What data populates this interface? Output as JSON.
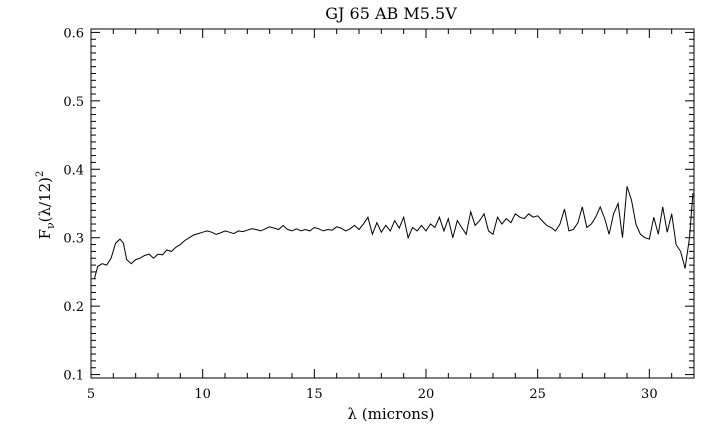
{
  "chart_data": {
    "type": "line",
    "title": "GJ 65 AB M5.5V",
    "xlabel": "λ (microns)",
    "ylabel": "Fν(λ/12)²",
    "ylabel_parts": {
      "base": "F",
      "sub": "ν",
      "mid": "(λ/12)",
      "sup": "2"
    },
    "xlim": [
      5,
      32
    ],
    "ylim": [
      0.095,
      0.605
    ],
    "xticks": [
      5,
      10,
      15,
      20,
      25,
      30
    ],
    "yticks": [
      0.1,
      0.2,
      0.3,
      0.4,
      0.5,
      0.6
    ],
    "xtick_labels": [
      "5",
      "10",
      "15",
      "20",
      "25",
      "30"
    ],
    "ytick_labels": [
      "0.1",
      "0.2",
      "0.3",
      "0.4",
      "0.5",
      "0.6"
    ],
    "grid": false,
    "series": [
      {
        "color": "#000000",
        "x": [
          5.15,
          5.3,
          5.5,
          5.7,
          5.9,
          6.1,
          6.3,
          6.45,
          6.6,
          6.8,
          7.0,
          7.2,
          7.4,
          7.6,
          7.8,
          8.0,
          8.2,
          8.4,
          8.6,
          8.8,
          9.0,
          9.2,
          9.4,
          9.6,
          9.8,
          10.0,
          10.2,
          10.4,
          10.6,
          10.8,
          11.0,
          11.2,
          11.4,
          11.6,
          11.8,
          12.0,
          12.2,
          12.4,
          12.6,
          12.8,
          13.0,
          13.2,
          13.4,
          13.6,
          13.8,
          14.0,
          14.2,
          14.4,
          14.6,
          14.8,
          15.0,
          15.2,
          15.4,
          15.6,
          15.8,
          16.0,
          16.2,
          16.4,
          16.6,
          16.8,
          17.0,
          17.2,
          17.4,
          17.6,
          17.8,
          18.0,
          18.2,
          18.4,
          18.6,
          18.8,
          19.0,
          19.2,
          19.4,
          19.6,
          19.8,
          20.0,
          20.2,
          20.4,
          20.6,
          20.8,
          21.0,
          21.2,
          21.4,
          21.6,
          21.8,
          22.0,
          22.2,
          22.4,
          22.6,
          22.8,
          23.0,
          23.2,
          23.4,
          23.6,
          23.8,
          24.0,
          24.2,
          24.4,
          24.6,
          24.8,
          25.0,
          25.2,
          25.4,
          25.6,
          25.8,
          26.0,
          26.2,
          26.4,
          26.6,
          26.8,
          27.0,
          27.2,
          27.4,
          27.6,
          27.8,
          28.0,
          28.2,
          28.4,
          28.6,
          28.8,
          29.0,
          29.2,
          29.4,
          29.6,
          29.8,
          30.0,
          30.2,
          30.4,
          30.6,
          30.8,
          31.0,
          31.2,
          31.4,
          31.6,
          31.8,
          31.95
        ],
        "y": [
          0.24,
          0.258,
          0.262,
          0.26,
          0.27,
          0.292,
          0.298,
          0.292,
          0.268,
          0.262,
          0.268,
          0.27,
          0.274,
          0.276,
          0.27,
          0.276,
          0.275,
          0.282,
          0.28,
          0.286,
          0.29,
          0.296,
          0.3,
          0.304,
          0.306,
          0.308,
          0.31,
          0.308,
          0.305,
          0.307,
          0.31,
          0.308,
          0.306,
          0.31,
          0.309,
          0.311,
          0.313,
          0.312,
          0.31,
          0.313,
          0.316,
          0.314,
          0.312,
          0.318,
          0.312,
          0.31,
          0.313,
          0.31,
          0.312,
          0.31,
          0.315,
          0.313,
          0.31,
          0.312,
          0.311,
          0.316,
          0.314,
          0.31,
          0.313,
          0.318,
          0.312,
          0.32,
          0.33,
          0.305,
          0.322,
          0.308,
          0.318,
          0.31,
          0.325,
          0.314,
          0.33,
          0.3,
          0.315,
          0.31,
          0.318,
          0.31,
          0.32,
          0.315,
          0.33,
          0.31,
          0.328,
          0.3,
          0.325,
          0.315,
          0.305,
          0.338,
          0.318,
          0.325,
          0.335,
          0.31,
          0.305,
          0.33,
          0.32,
          0.328,
          0.322,
          0.335,
          0.33,
          0.328,
          0.335,
          0.33,
          0.332,
          0.325,
          0.318,
          0.315,
          0.31,
          0.32,
          0.342,
          0.31,
          0.312,
          0.322,
          0.345,
          0.315,
          0.32,
          0.33,
          0.345,
          0.328,
          0.305,
          0.335,
          0.35,
          0.3,
          0.375,
          0.355,
          0.32,
          0.305,
          0.3,
          0.298,
          0.33,
          0.305,
          0.345,
          0.308,
          0.335,
          0.29,
          0.28,
          0.255,
          0.3,
          0.365
        ]
      }
    ]
  }
}
